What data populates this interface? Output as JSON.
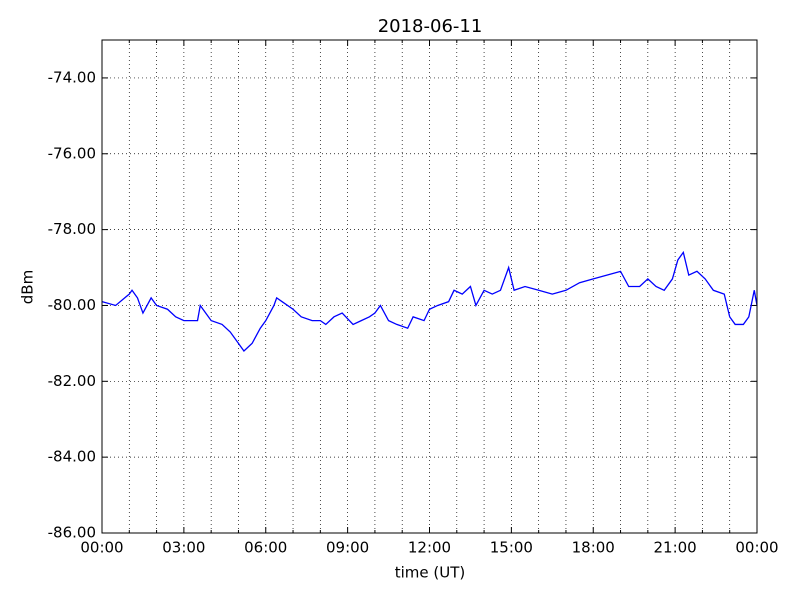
{
  "chart_data": {
    "type": "line",
    "title": "2018-06-11",
    "xlabel": "time (UT)",
    "ylabel": "dBm",
    "xlim": [
      0,
      24
    ],
    "ylim": [
      -86,
      -73
    ],
    "xticks": [
      {
        "value": 0,
        "label": "00:00"
      },
      {
        "value": 3,
        "label": "03:00"
      },
      {
        "value": 6,
        "label": "06:00"
      },
      {
        "value": 9,
        "label": "09:00"
      },
      {
        "value": 12,
        "label": "12:00"
      },
      {
        "value": 15,
        "label": "15:00"
      },
      {
        "value": 18,
        "label": "18:00"
      },
      {
        "value": 21,
        "label": "21:00"
      },
      {
        "value": 24,
        "label": "00:00"
      }
    ],
    "xminorticks": [
      1,
      2,
      4,
      5,
      7,
      8,
      10,
      11,
      13,
      14,
      16,
      17,
      19,
      20,
      22,
      23
    ],
    "yticks": [
      {
        "value": -74,
        "label": "-74.00"
      },
      {
        "value": -76,
        "label": "-76.00"
      },
      {
        "value": -78,
        "label": "-78.00"
      },
      {
        "value": -80,
        "label": "-80.00"
      },
      {
        "value": -82,
        "label": "-82.00"
      },
      {
        "value": -84,
        "label": "-84.00"
      },
      {
        "value": -86,
        "label": "-86.00"
      }
    ],
    "grid": true,
    "series": [
      {
        "color": "#0000ff",
        "x": [
          0.0,
          0.5,
          1.0,
          1.1,
          1.3,
          1.5,
          1.8,
          2.0,
          2.4,
          2.7,
          3.0,
          3.5,
          3.6,
          4.0,
          4.4,
          4.7,
          5.0,
          5.2,
          5.5,
          5.8,
          6.0,
          6.3,
          6.4,
          6.6,
          7.0,
          7.3,
          7.7,
          8.0,
          8.2,
          8.5,
          8.8,
          9.2,
          9.5,
          9.8,
          10.0,
          10.2,
          10.5,
          10.8,
          11.2,
          11.4,
          11.8,
          12.0,
          12.3,
          12.7,
          12.9,
          13.2,
          13.5,
          13.7,
          14.0,
          14.3,
          14.6,
          14.9,
          15.1,
          15.5,
          16.0,
          16.5,
          17.0,
          17.5,
          18.0,
          18.5,
          19.0,
          19.3,
          19.7,
          20.0,
          20.3,
          20.6,
          20.9,
          21.1,
          21.3,
          21.5,
          21.8,
          22.1,
          22.4,
          22.8,
          23.0,
          23.2,
          23.5,
          23.7,
          23.9,
          24.0
        ],
        "values": [
          -79.9,
          -80.0,
          -79.7,
          -79.6,
          -79.8,
          -80.2,
          -79.8,
          -80.0,
          -80.1,
          -80.3,
          -80.4,
          -80.4,
          -80.0,
          -80.4,
          -80.5,
          -80.7,
          -81.0,
          -81.2,
          -81.0,
          -80.6,
          -80.4,
          -80.0,
          -79.8,
          -79.9,
          -80.1,
          -80.3,
          -80.4,
          -80.4,
          -80.5,
          -80.3,
          -80.2,
          -80.5,
          -80.4,
          -80.3,
          -80.2,
          -80.0,
          -80.4,
          -80.5,
          -80.6,
          -80.3,
          -80.4,
          -80.1,
          -80.0,
          -79.9,
          -79.6,
          -79.7,
          -79.5,
          -80.0,
          -79.6,
          -79.7,
          -79.6,
          -79.0,
          -79.6,
          -79.5,
          -79.6,
          -79.7,
          -79.6,
          -79.4,
          -79.3,
          -79.2,
          -79.1,
          -79.5,
          -79.5,
          -79.3,
          -79.5,
          -79.6,
          -79.3,
          -78.8,
          -78.6,
          -79.2,
          -79.1,
          -79.3,
          -79.6,
          -79.7,
          -80.3,
          -80.5,
          -80.5,
          -80.3,
          -79.6,
          -80.0
        ]
      }
    ]
  }
}
